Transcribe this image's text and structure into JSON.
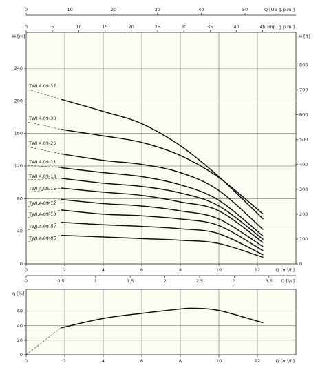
{
  "chart_data": [
    {
      "type": "line",
      "x_label": "Q [m³/h]",
      "y_label": "H [m]",
      "y2_label": "H [ft]",
      "xlim": [
        0,
        14
      ],
      "xticks": [
        0,
        2,
        4,
        6,
        8,
        10,
        12
      ],
      "ylim": [
        0,
        284
      ],
      "yticks": [
        0,
        40,
        80,
        120,
        160,
        200,
        240
      ],
      "y2lim": [
        0,
        931.8
      ],
      "y2ticks": [
        0,
        100,
        200,
        300,
        400,
        500,
        600,
        700,
        800
      ],
      "grid": true,
      "secondary_x_axes": [
        {
          "label": "Q [US g.p.m.]",
          "lim": [
            0,
            61.64
          ],
          "ticks": [
            0,
            10,
            20,
            30,
            40,
            50
          ]
        },
        {
          "label": "Q [Imp. g.p.m.]",
          "lim": [
            0,
            51.33
          ],
          "ticks": [
            0,
            5,
            10,
            15,
            20,
            25,
            30,
            35,
            40,
            45
          ]
        },
        {
          "label": "Q [l/s]",
          "lim": [
            0,
            3.889
          ],
          "ticks": [
            0,
            {
              "value": 0.5,
              "label": "0,5"
            },
            1,
            {
              "value": 1.5,
              "label": "1,5"
            },
            2,
            {
              "value": 2.5,
              "label": "2,5"
            },
            3,
            {
              "value": 3.5,
              "label": "3,5"
            }
          ]
        }
      ],
      "x": [
        1.8,
        4,
        6,
        8,
        10,
        12.3
      ],
      "series": [
        {
          "name": "TWI 4.09-37",
          "color": "#111111",
          "values": [
            202,
            187,
            172,
            145,
            107,
            55
          ]
        },
        {
          "name": "TWI 4.09-30",
          "color": "#111111",
          "values": [
            165,
            157,
            149,
            133,
            106,
            61
          ]
        },
        {
          "name": "TWI 4.09-25",
          "color": "#111111",
          "values": [
            135,
            127,
            122,
            112,
            90,
            42
          ]
        },
        {
          "name": "TWI 4.09-21",
          "color": "#111111",
          "values": [
            118,
            112,
            107,
            97,
            78,
            34
          ]
        },
        {
          "name": "TWI 4.09-18",
          "color": "#111111",
          "values": [
            105,
            99,
            95,
            87,
            71,
            30
          ]
        },
        {
          "name": "TWI 4.09-15",
          "color": "#111111",
          "values": [
            93,
            88,
            84,
            76,
            65,
            26
          ]
        },
        {
          "name": "TWI 4.09-12",
          "color": "#111111",
          "values": [
            79,
            74,
            71,
            65,
            55,
            21
          ]
        },
        {
          "name": "TWI 4.09-10",
          "color": "#111111",
          "values": [
            66,
            61,
            59,
            55,
            47,
            16
          ]
        },
        {
          "name": "TWI 4.09-07",
          "color": "#111111",
          "values": [
            51,
            48,
            46,
            43,
            37,
            11
          ]
        },
        {
          "name": "TWI 4.09-05",
          "color": "#111111",
          "values": [
            35,
            33,
            31,
            29,
            25,
            8
          ]
        }
      ]
    },
    {
      "type": "line",
      "x_label": "Q [m³/h]",
      "y_label": "η [%]",
      "xlim": [
        0,
        14
      ],
      "xticks": [
        0,
        2,
        4,
        6,
        8,
        10,
        12
      ],
      "ylim": [
        0,
        90
      ],
      "yticks": [
        0,
        20,
        40,
        60
      ],
      "grid": true,
      "x": [
        1.8,
        4,
        6,
        8,
        8.7,
        10,
        12.3
      ],
      "series": [
        {
          "color": "#111111",
          "values": [
            37,
            50,
            57,
            63,
            64,
            61,
            44
          ]
        }
      ]
    }
  ]
}
